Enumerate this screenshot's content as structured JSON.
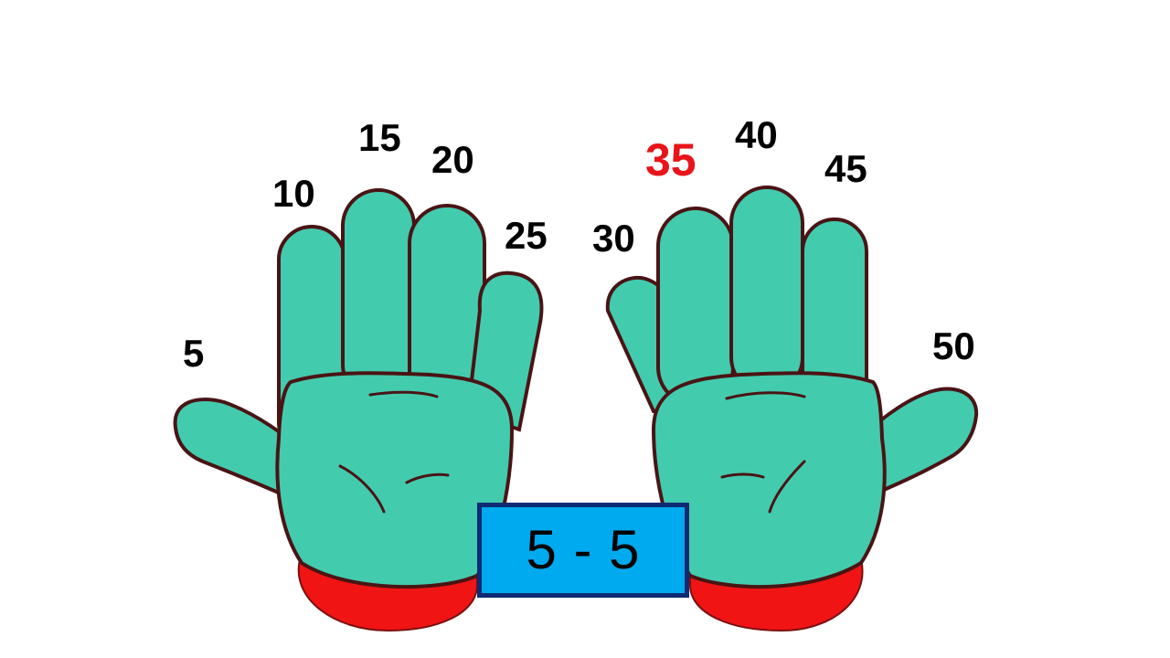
{
  "finger_labels": [
    "5",
    "10",
    "15",
    "20",
    "25",
    "30",
    "35",
    "40",
    "45",
    "50"
  ],
  "highlighted_label": "35",
  "counter": {
    "text": "5 - 5"
  },
  "colors": {
    "glove": "#43cbae",
    "glove_outline": "#4a1414",
    "cuff": "#f01414",
    "label_default": "#000000",
    "label_highlight": "#e8141a",
    "counter_fill": "#00aaee",
    "counter_border": "#0f2a73"
  }
}
